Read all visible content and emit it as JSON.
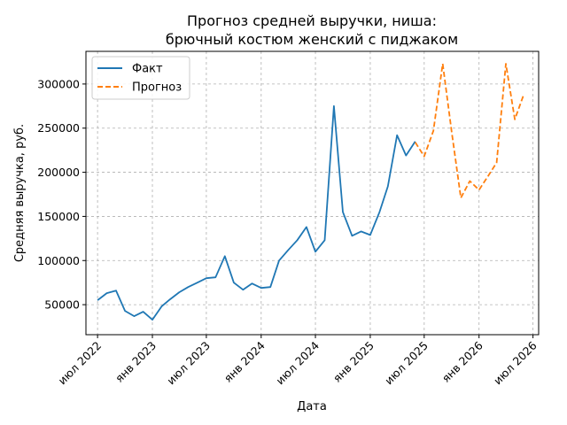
{
  "chart_data": {
    "type": "line",
    "title_line1": "Прогноз средней выручки, ниша:",
    "title_line2": "брючный костюм женский с пиджаком",
    "xlabel": "Дата",
    "ylabel": "Средняя выручка, руб.",
    "xlim": [
      "2022-05-23",
      "2026-07-20"
    ],
    "ylim": [
      16000,
      337000
    ],
    "x_ticks": [
      {
        "date": "2022-07-01",
        "label": "июл 2022"
      },
      {
        "date": "2023-01-01",
        "label": "янв 2023"
      },
      {
        "date": "2023-07-01",
        "label": "июл 2023"
      },
      {
        "date": "2024-01-01",
        "label": "янв 2024"
      },
      {
        "date": "2024-07-01",
        "label": "июл 2024"
      },
      {
        "date": "2025-01-01",
        "label": "янв 2025"
      },
      {
        "date": "2025-07-01",
        "label": "июл 2025"
      },
      {
        "date": "2026-01-01",
        "label": "янв 2026"
      },
      {
        "date": "2026-07-01",
        "label": "июл 2026"
      }
    ],
    "y_ticks": [
      {
        "value": 50000,
        "label": "50000"
      },
      {
        "value": 100000,
        "label": "100000"
      },
      {
        "value": 150000,
        "label": "150000"
      },
      {
        "value": 200000,
        "label": "200000"
      },
      {
        "value": 250000,
        "label": "250000"
      },
      {
        "value": 300000,
        "label": "300000"
      }
    ],
    "grid": true,
    "legend_position": "top-left",
    "series": [
      {
        "name": "Факт",
        "color": "#1f77b4",
        "style": "solid",
        "points": [
          [
            "2022-07-01",
            55000
          ],
          [
            "2022-08-01",
            63000
          ],
          [
            "2022-09-01",
            66000
          ],
          [
            "2022-10-01",
            43000
          ],
          [
            "2022-11-01",
            37000
          ],
          [
            "2022-12-01",
            42000
          ],
          [
            "2023-01-01",
            33000
          ],
          [
            "2023-02-01",
            48000
          ],
          [
            "2023-03-01",
            56000
          ],
          [
            "2023-04-01",
            64000
          ],
          [
            "2023-05-01",
            70000
          ],
          [
            "2023-06-01",
            75000
          ],
          [
            "2023-07-01",
            80000
          ],
          [
            "2023-08-01",
            81000
          ],
          [
            "2023-09-01",
            105000
          ],
          [
            "2023-10-01",
            75000
          ],
          [
            "2023-11-01",
            67000
          ],
          [
            "2023-12-01",
            74000
          ],
          [
            "2024-01-01",
            69000
          ],
          [
            "2024-02-01",
            70000
          ],
          [
            "2024-03-01",
            100000
          ],
          [
            "2024-04-01",
            112000
          ],
          [
            "2024-05-01",
            123000
          ],
          [
            "2024-06-01",
            138000
          ],
          [
            "2024-07-01",
            110000
          ],
          [
            "2024-08-01",
            123000
          ],
          [
            "2024-09-01",
            275000
          ],
          [
            "2024-10-01",
            155000
          ],
          [
            "2024-11-01",
            128000
          ],
          [
            "2024-12-01",
            133000
          ],
          [
            "2025-01-01",
            129000
          ],
          [
            "2025-02-01",
            155000
          ],
          [
            "2025-03-01",
            184000
          ],
          [
            "2025-04-01",
            242000
          ],
          [
            "2025-05-01",
            219000
          ],
          [
            "2025-06-01",
            235000
          ]
        ]
      },
      {
        "name": "Прогноз",
        "color": "#ff7f0e",
        "style": "dashed",
        "points": [
          [
            "2025-06-01",
            234000
          ],
          [
            "2025-07-01",
            218000
          ],
          [
            "2025-08-01",
            247000
          ],
          [
            "2025-09-01",
            323000
          ],
          [
            "2025-10-01",
            246000
          ],
          [
            "2025-11-01",
            171000
          ],
          [
            "2025-12-01",
            190000
          ],
          [
            "2026-01-01",
            180000
          ],
          [
            "2026-02-01",
            196000
          ],
          [
            "2026-03-01",
            211000
          ],
          [
            "2026-04-01",
            323000
          ],
          [
            "2026-05-01",
            260000
          ],
          [
            "2026-06-01",
            289000
          ]
        ]
      }
    ]
  }
}
